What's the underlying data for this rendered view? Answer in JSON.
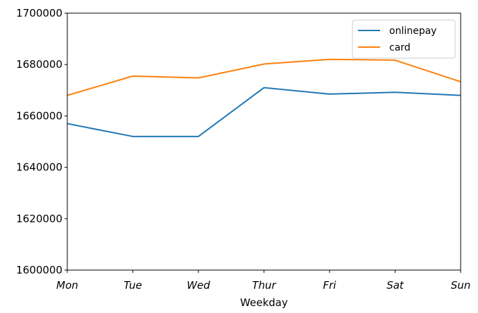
{
  "chart_data": {
    "type": "line",
    "title": "",
    "xlabel": "Weekday",
    "ylabel": "",
    "categories": [
      "Mon",
      "Tue",
      "Wed",
      "Thur",
      "Fri",
      "Sat",
      "Sun"
    ],
    "ylim": [
      1600000,
      1700000
    ],
    "yticks": [
      1600000,
      1620000,
      1640000,
      1660000,
      1680000,
      1700000
    ],
    "ytick_labels": [
      "1600000",
      "1620000",
      "1640000",
      "1660000",
      "1680000",
      "1700000"
    ],
    "grid": false,
    "legend_position": "top-right",
    "series": [
      {
        "name": "onlinepay",
        "color": "#1f77b4",
        "values": [
          1657000,
          1652000,
          1652000,
          1671000,
          1668500,
          1669200,
          1668000
        ]
      },
      {
        "name": "card",
        "color": "#ff7f0e",
        "values": [
          1668000,
          1675500,
          1674800,
          1680200,
          1682000,
          1681700,
          1673300
        ]
      }
    ]
  }
}
